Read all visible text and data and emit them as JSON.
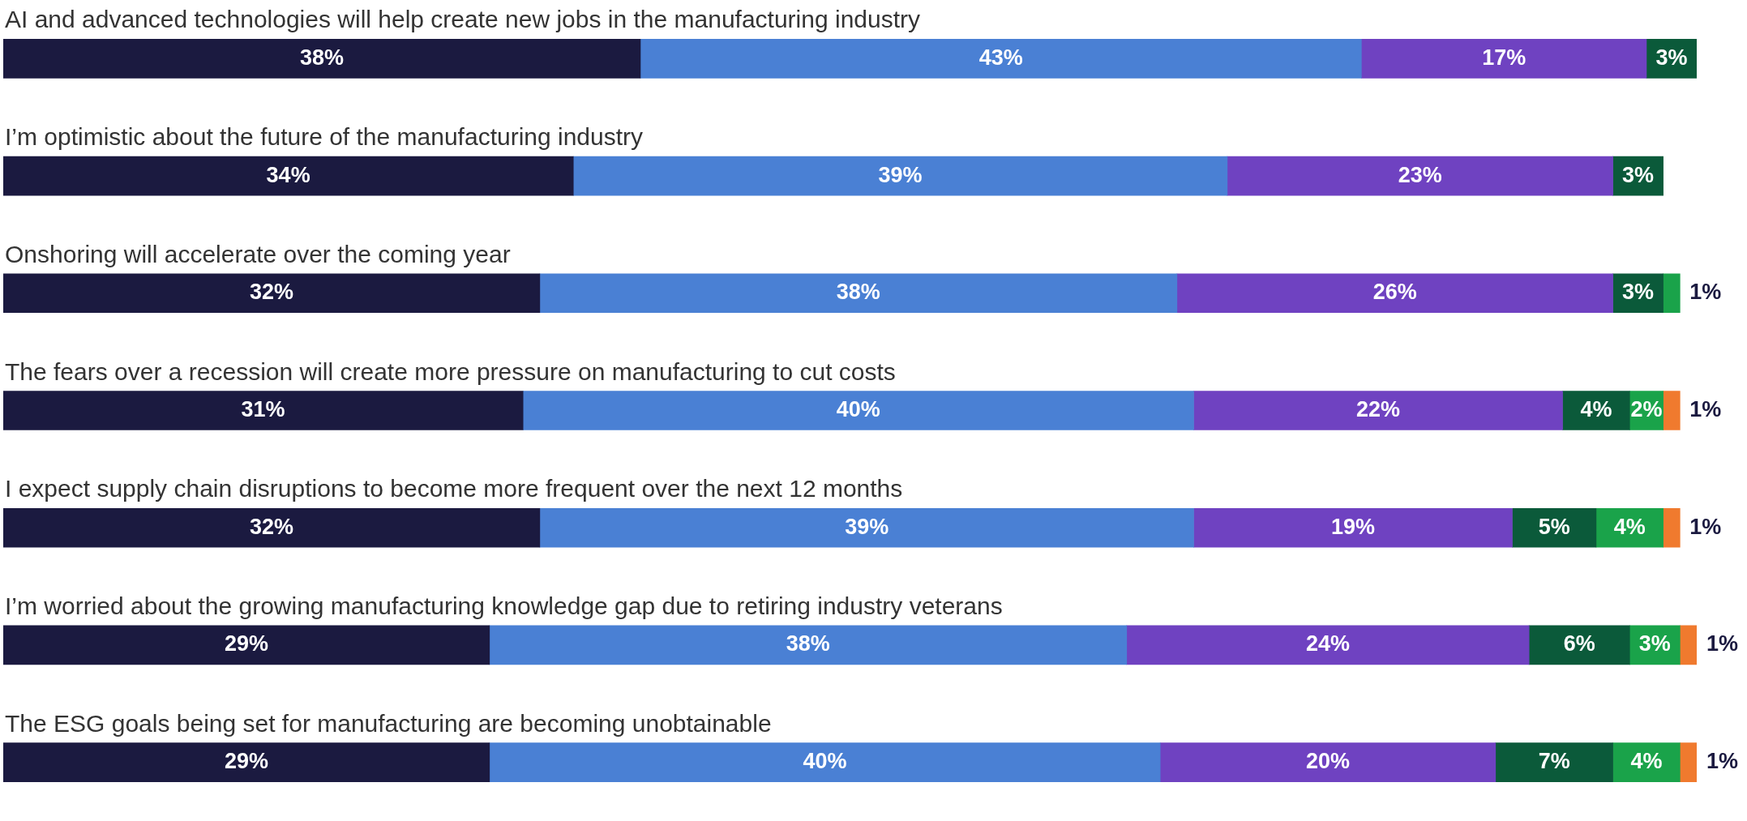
{
  "chart_data": {
    "type": "bar",
    "orientation": "horizontal",
    "stacked": true,
    "tick_labels": false,
    "legend": false,
    "categories": [
      "AI and advanced technologies will help create new jobs in the manufacturing industry",
      "I’m optimistic about the future of the manufacturing industry",
      "Onshoring will accelerate over the coming year",
      "The fears over a recession will create more pressure on manufacturing to cut costs",
      "I expect supply chain disruptions to become more frequent over the next 12 months",
      "I’m worried about the growing manufacturing knowledge gap due to retiring industry veterans",
      "The ESG goals being set for manufacturing are becoming unobtainable"
    ],
    "series": [
      {
        "color": "#1b1a40",
        "values": [
          38,
          34,
          32,
          31,
          32,
          29,
          29
        ],
        "value_labels": [
          "38%",
          "34%",
          "32%",
          "31%",
          "32%",
          "29%",
          "29%"
        ]
      },
      {
        "color": "#4a80d4",
        "values": [
          43,
          39,
          38,
          40,
          39,
          38,
          40
        ],
        "value_labels": [
          "43%",
          "39%",
          "38%",
          "40%",
          "39%",
          "38%",
          "40%"
        ]
      },
      {
        "color": "#6f42c1",
        "values": [
          17,
          23,
          26,
          22,
          19,
          24,
          20
        ],
        "value_labels": [
          "17%",
          "23%",
          "26%",
          "22%",
          "19%",
          "24%",
          "20%"
        ]
      },
      {
        "color": "#0b5a3a",
        "values": [
          3,
          3,
          3,
          4,
          5,
          6,
          7
        ],
        "value_labels": [
          "3%",
          "3%",
          "3%",
          "4%",
          "5%",
          "6%",
          "7%"
        ]
      },
      {
        "color": "#1aa34a",
        "values": [
          null,
          null,
          1,
          2,
          4,
          3,
          4
        ],
        "value_labels": [
          null,
          null,
          "1%",
          "2%",
          "4%",
          "3%",
          "4%"
        ]
      },
      {
        "color": "#f07a2e",
        "values": [
          null,
          null,
          null,
          1,
          1,
          1,
          1
        ],
        "value_labels": [
          null,
          null,
          null,
          "1%",
          "1%",
          "1%",
          "1%"
        ]
      }
    ]
  }
}
